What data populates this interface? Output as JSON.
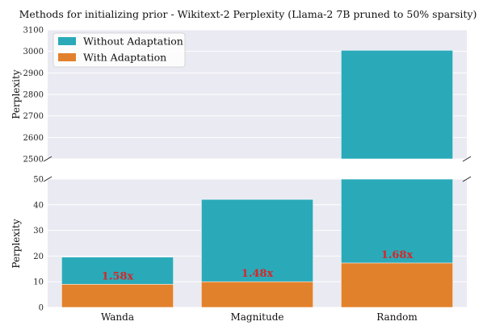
{
  "chart_data": {
    "type": "bar",
    "title": "Methods for initializing prior - Wikitext-2 Perplexity (Llama-2 7B pruned to 50% sparsity)",
    "ylabel": "Perplexity",
    "categories": [
      "Wanda",
      "Magnitude",
      "Random"
    ],
    "series": [
      {
        "name": "Without Adaptation",
        "color": "#2aaab9",
        "values": [
          19.6,
          42.1,
          3005
        ]
      },
      {
        "name": "With Adaptation",
        "color": "#e2812c",
        "values": [
          9.0,
          10.0,
          17.3
        ]
      }
    ],
    "ratio_labels": [
      "1.58x",
      "1.48x",
      "1.68x"
    ],
    "broken_axis": true,
    "upper_ylim": [
      2500,
      3100
    ],
    "upper_yticks": [
      2500,
      2600,
      2700,
      2800,
      2900,
      3000,
      3100
    ],
    "lower_ylim": [
      0,
      50
    ],
    "lower_yticks": [
      0,
      10,
      20,
      30,
      40,
      50
    ],
    "legend_position": "top-left",
    "grid": true
  }
}
